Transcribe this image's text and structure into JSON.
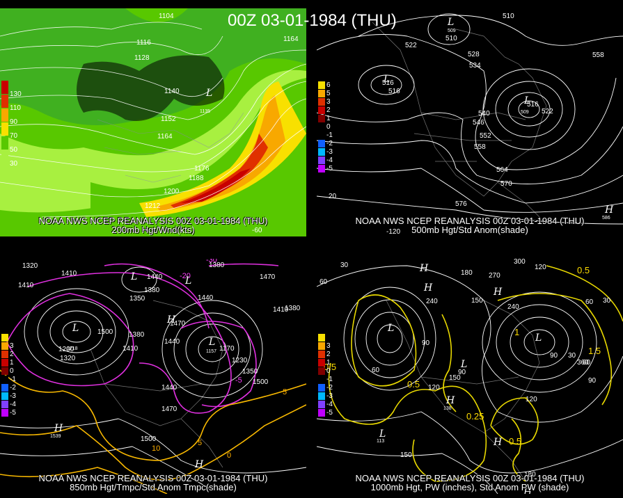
{
  "title": "00Z 03-01-1984 (THU)",
  "panels": [
    {
      "id": "200mb",
      "caption_line1": "NOAA NWS NCEP REANALYSIS 00Z 03-01-1984 (THU)",
      "caption_line2": "200mb Hgt/Wnd(kts)",
      "legend": [
        {
          "label": "130",
          "color": "#c80000"
        },
        {
          "label": "110",
          "color": "#e03000"
        },
        {
          "label": "90",
          "color": "#f8a800"
        },
        {
          "label": "70",
          "color": "#f8e000"
        },
        {
          "label": "50",
          "color": "#58c800"
        },
        {
          "label": "30",
          "color": "#a8f040"
        }
      ],
      "contour_labels": [
        "1104",
        "1116",
        "1128",
        "1140",
        "1152",
        "1164",
        "1164",
        "1176",
        "1188",
        "1200",
        "1212"
      ],
      "lat_label": "",
      "lon_label": "-60",
      "symbols": [
        "L"
      ],
      "symbol_values": [
        "1135"
      ]
    },
    {
      "id": "500mb",
      "caption_line1": "NOAA NWS NCEP REANALYSIS 00Z 03-01-1984 (THU)",
      "caption_line2": "500mb Hgt/Std Anom(shade)",
      "legend": [
        {
          "label": "6",
          "color": "#f8e000"
        },
        {
          "label": "5",
          "color": "#f8a800"
        },
        {
          "label": "3",
          "color": "#e03000"
        },
        {
          "label": "2",
          "color": "#c80000"
        },
        {
          "label": "1",
          "color": "#800000"
        },
        {
          "label": "0",
          "color": "#000000"
        },
        {
          "label": "-1",
          "color": "#000000"
        },
        {
          "label": "-2",
          "color": "#1060ff"
        },
        {
          "label": "-3",
          "color": "#00b8ff"
        },
        {
          "label": "-4",
          "color": "#8040ff"
        },
        {
          "label": "-5",
          "color": "#c000ff"
        }
      ],
      "contour_labels": [
        "510",
        "510",
        "522",
        "528",
        "534",
        "516",
        "516",
        "540",
        "546",
        "552",
        "558",
        "564",
        "570",
        "576",
        "516",
        "522",
        "558"
      ],
      "lat_label": "20",
      "lon_label": "-120",
      "symbols": [
        "L",
        "L",
        "L",
        "H"
      ],
      "symbol_values": [
        "509",
        "505",
        "509",
        "586"
      ]
    },
    {
      "id": "850mb",
      "caption_line1": "NOAA NWS NCEP REANALYSIS 00Z 03-01-1984 (THU)",
      "caption_line2": "850mb Hgt/Tmpc/Std Anom Tmpc(shade)",
      "legend": [
        {
          "label": "",
          "color": "#f8e000"
        },
        {
          "label": "3",
          "color": "#f8a800"
        },
        {
          "label": "2",
          "color": "#e03000"
        },
        {
          "label": "1",
          "color": "#c80000"
        },
        {
          "label": "0",
          "color": "#800000"
        },
        {
          "label": "-1",
          "color": "#000000"
        },
        {
          "label": "-2",
          "color": "#1060ff"
        },
        {
          "label": "-3",
          "color": "#00b8ff"
        },
        {
          "label": "-4",
          "color": "#8040ff"
        },
        {
          "label": "-5",
          "color": "#c000ff"
        }
      ],
      "contour_labels": [
        "1320",
        "1410",
        "1440",
        "1380",
        "1410",
        "1470",
        "1350",
        "1380",
        "1440",
        "1410",
        "1380",
        "1440",
        "1470",
        "1500",
        "1410",
        "1380",
        "1200",
        "1320",
        "1500",
        "1170",
        "1230",
        "1350",
        "1470",
        "1440",
        "1500"
      ],
      "temp_labels": [
        "-30",
        "-20",
        "0",
        "-5",
        "5",
        "10",
        "5"
      ],
      "symbols": [
        "L",
        "L",
        "L",
        "H",
        "L",
        "H",
        "H"
      ],
      "symbol_values": [
        "1218",
        "1290",
        "1410",
        "1470",
        "1157",
        "1539",
        "1500"
      ]
    },
    {
      "id": "1000mb",
      "caption_line1": "NOAA NWS NCEP REANALYSIS 00Z 03-01-1984 (THU)",
      "caption_line2": "1000mb Hgt, PW (inches), Std Anom PW (shade)",
      "legend": [
        {
          "label": "",
          "color": "#f8e000"
        },
        {
          "label": "3",
          "color": "#f8a800"
        },
        {
          "label": "2",
          "color": "#e03000"
        },
        {
          "label": "1",
          "color": "#c80000"
        },
        {
          "label": "0",
          "color": "#800000"
        },
        {
          "label": "-1",
          "color": "#000000"
        },
        {
          "label": "-2",
          "color": "#1060ff"
        },
        {
          "label": "-3",
          "color": "#00b8ff"
        },
        {
          "label": "-4",
          "color": "#8040ff"
        },
        {
          "label": "-5",
          "color": "#c000ff"
        }
      ],
      "contour_labels": [
        "30",
        "60",
        "270",
        "180",
        "300",
        "120",
        "240",
        "150",
        "240",
        "60",
        "30",
        "90",
        "120",
        "90",
        "120",
        "60",
        "150",
        "90",
        "30",
        "60",
        "90",
        "150",
        "180",
        "360"
      ],
      "pw_labels": [
        "0.5",
        "0.5",
        "1.5",
        "0.5",
        "0.25",
        "0.5",
        "1"
      ],
      "symbols": [
        "H",
        "H",
        "L",
        "H",
        "L",
        "L",
        "H",
        "L",
        "H",
        "H"
      ],
      "symbol_values": [
        "270",
        "240",
        "12",
        "247",
        "21",
        "90",
        "138",
        "113",
        "210",
        "180"
      ]
    }
  ]
}
